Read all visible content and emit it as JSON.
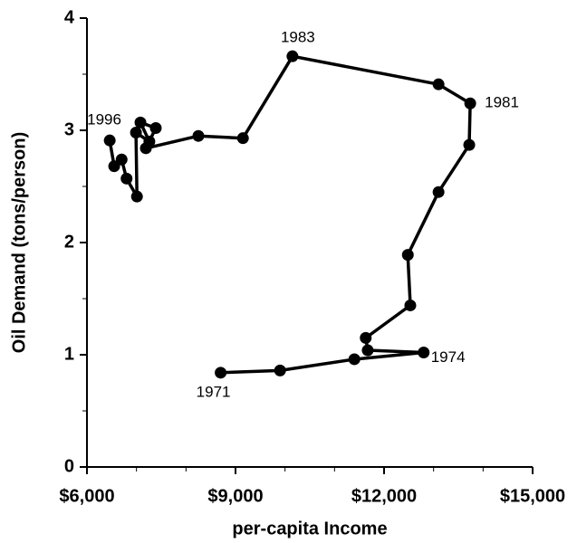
{
  "chart_data": {
    "type": "line",
    "x_label": "per-capita Income",
    "y_label": "Oil Demand (tons/person)",
    "color": "#000000",
    "marker": "circle",
    "grid": false,
    "x": [
      8700,
      9900,
      11400,
      12800,
      11670,
      11630,
      12530,
      12480,
      13100,
      13720,
      13740,
      13100,
      10150,
      9150,
      8250,
      7190,
      7390,
      7080,
      7260,
      6990,
      7010,
      6800,
      6700,
      6550,
      6460
    ],
    "values": [
      0.84,
      0.86,
      0.96,
      1.02,
      1.04,
      1.15,
      1.44,
      1.89,
      2.45,
      2.87,
      3.24,
      3.41,
      3.66,
      2.93,
      2.95,
      2.84,
      3.02,
      3.07,
      2.9,
      2.98,
      2.41,
      2.57,
      2.74,
      2.68,
      2.91
    ],
    "point_labels": [
      "1971",
      null,
      null,
      "1974",
      null,
      null,
      null,
      null,
      null,
      null,
      "1981",
      null,
      "1983",
      null,
      null,
      null,
      null,
      null,
      null,
      null,
      null,
      null,
      null,
      null,
      "1996"
    ],
    "xlim": [
      6000,
      15000
    ],
    "xticks": [
      {
        "value": 6000,
        "label": "$6,000"
      },
      {
        "value": 9000,
        "label": "$9,000"
      },
      {
        "value": 12000,
        "label": "$12,000"
      },
      {
        "value": 15000,
        "label": "$15,000"
      }
    ],
    "xminorticks": [
      7000,
      8000,
      10000,
      11000,
      13000,
      14000
    ],
    "ylim": [
      0,
      4
    ],
    "yticks": [
      0,
      1,
      2,
      3,
      4
    ],
    "yminorticks": [
      0.5,
      1.5,
      2.5,
      3.5
    ]
  }
}
